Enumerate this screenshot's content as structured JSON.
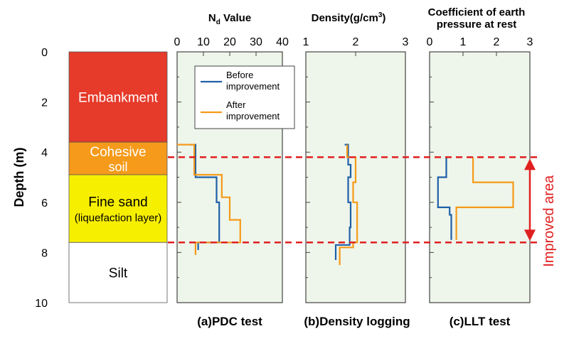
{
  "chart_data": [
    {
      "type": "line",
      "panel": "pdc",
      "title": "N",
      "title_sub": "d",
      "title_suffix": " Value",
      "caption": "(a)PDC test",
      "ylabel": "Depth (m)",
      "ylim": [
        0,
        10
      ],
      "xlim": [
        0,
        40
      ],
      "xticks": [
        0,
        10,
        20,
        30,
        40
      ],
      "yticks": [
        0,
        2,
        4,
        6,
        8,
        10
      ],
      "series": [
        {
          "name": "Before improvement",
          "color": "#1f5fa8",
          "x": [
            5,
            7,
            7,
            7,
            7,
            15,
            15,
            16,
            16,
            16,
            16,
            8,
            8
          ],
          "y": [
            3.7,
            3.7,
            4.2,
            4.9,
            5.0,
            5.0,
            6.0,
            6.0,
            6.6,
            7.6,
            7.6,
            7.6,
            7.9
          ]
        },
        {
          "name": "After improvement",
          "color": "#f59a1a",
          "x": [
            0,
            6.5,
            6.5,
            17,
            17,
            20,
            20,
            24,
            24,
            7,
            7
          ],
          "y": [
            3.7,
            3.7,
            4.9,
            4.9,
            5.8,
            5.8,
            6.7,
            6.7,
            7.6,
            7.6,
            8.1
          ]
        }
      ]
    },
    {
      "type": "line",
      "panel": "density",
      "title": "Density(g/cm",
      "title_sup": "3",
      "title_suffix": ")",
      "caption": "(b)Density logging",
      "ylim": [
        0,
        10
      ],
      "xlim": [
        1,
        3
      ],
      "xticks": [
        1,
        2,
        3
      ],
      "series": [
        {
          "name": "Before improvement",
          "color": "#1f5fa8",
          "x": [
            1.78,
            1.85,
            1.85,
            1.9,
            1.9,
            1.85,
            1.85,
            1.9,
            1.9,
            1.88,
            1.88,
            1.6,
            1.6
          ],
          "y": [
            3.7,
            3.7,
            4.5,
            4.5,
            5.0,
            5.0,
            6.0,
            6.0,
            7.0,
            7.0,
            7.7,
            7.7,
            8.3
          ]
        },
        {
          "name": "After improvement",
          "color": "#f59a1a",
          "x": [
            1.83,
            1.83,
            2.0,
            2.0,
            1.95,
            1.95,
            2.03,
            2.03,
            1.95,
            1.95,
            1.68,
            1.68
          ],
          "y": [
            3.7,
            4.2,
            4.2,
            5.2,
            5.2,
            6.0,
            6.0,
            7.6,
            7.6,
            7.8,
            7.8,
            8.5
          ]
        }
      ]
    },
    {
      "type": "line",
      "panel": "llt",
      "title_line1": "Coefficient of earth",
      "title_line2": "pressure at rest",
      "caption": "(c)LLT test",
      "ylim": [
        0,
        10
      ],
      "xlim": [
        0,
        3
      ],
      "xticks": [
        0,
        1,
        2,
        3
      ],
      "series": [
        {
          "name": "Before improvement",
          "color": "#1f5fa8",
          "x": [
            0.5,
            0.5,
            0.25,
            0.25,
            0.6,
            0.6,
            0.65,
            0.65
          ],
          "y": [
            4.2,
            5.0,
            5.0,
            6.2,
            6.2,
            6.5,
            6.5,
            7.5
          ]
        },
        {
          "name": "After improvement",
          "color": "#f59a1a",
          "x": [
            1.3,
            1.3,
            2.5,
            2.5,
            0.8,
            0.8
          ],
          "y": [
            4.2,
            5.2,
            5.2,
            6.2,
            6.2,
            7.5
          ]
        }
      ]
    }
  ],
  "legend": {
    "before_line1": "Before",
    "before_line2": "improvement",
    "after_line1": "After",
    "after_line2": "improvement"
  },
  "layers": [
    {
      "name": "Embankment",
      "top": 0,
      "bottom": 3.6,
      "color": "#e63a2a",
      "text_color": "#ffffff"
    },
    {
      "name": "Cohesive",
      "name2": "soil",
      "top": 3.6,
      "bottom": 4.9,
      "color": "#f59a1a",
      "text_color": "#ffffff"
    },
    {
      "name": "Fine sand",
      "name2": "(liquefaction layer)",
      "top": 4.9,
      "bottom": 7.6,
      "color": "#f7ef00",
      "text_color": "#000000"
    },
    {
      "name": "Silt",
      "top": 7.6,
      "bottom": 10,
      "color": "#ffffff",
      "text_color": "#000000"
    }
  ],
  "improved_area": {
    "label": "Improved area",
    "top": 4.2,
    "bottom": 7.6,
    "line_color": "#e02020"
  }
}
